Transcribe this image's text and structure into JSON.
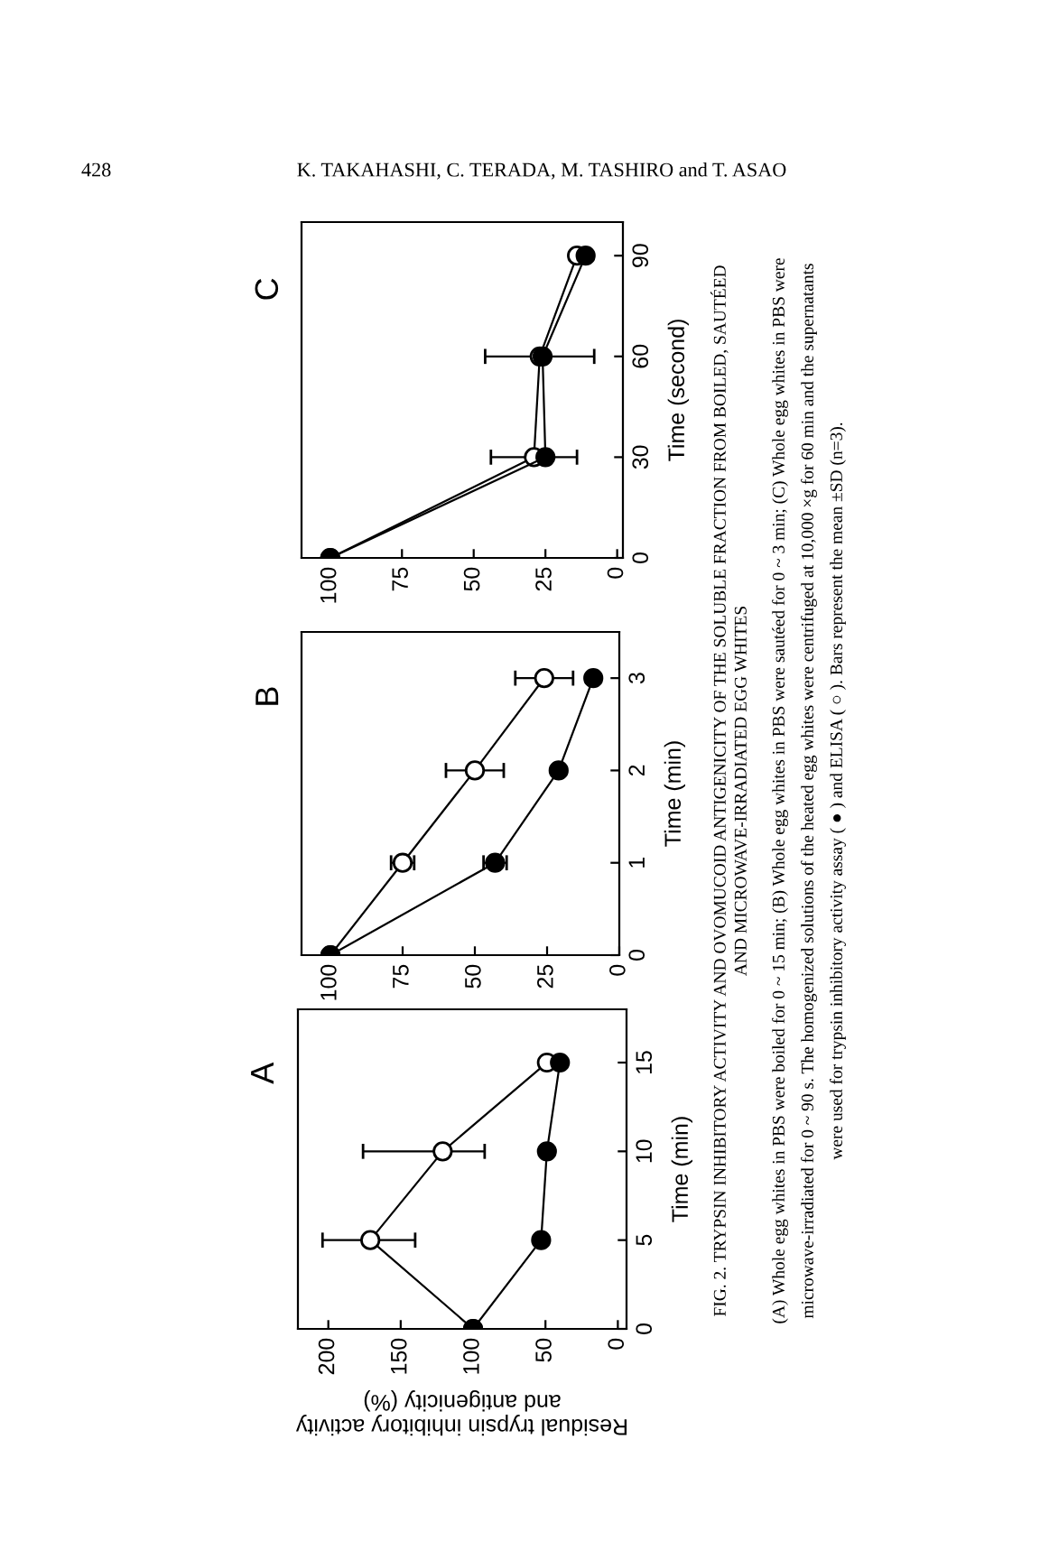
{
  "chart_data": [
    {
      "type": "line",
      "title": "A",
      "ylabel": "Time (min)",
      "xlabel": "Residual trypsin inhibitory activity\nand antigenicity (%)",
      "ylim": [
        0,
        18
      ],
      "yticks": [
        0,
        5,
        10,
        15
      ],
      "xlim": [
        221,
        -6
      ],
      "xticks": [
        0,
        50,
        100,
        150,
        200
      ],
      "marker": "circle",
      "line_style": "solid",
      "series": [
        {
          "color": "#000000",
          "x": [
            100,
            53,
            49,
            40
          ],
          "values": [
            0,
            5,
            10,
            15
          ]
        },
        {
          "color": "#ffffff",
          "x": [
            100,
            171,
            121,
            49
          ],
          "values": [
            0,
            5,
            10,
            15
          ],
          "xerrors": [
            null,
            [
              140,
              204
            ],
            [
              92,
              176
            ],
            null
          ]
        }
      ],
      "annotations": [
        "428",
        "K. TAKAHASHI, C. TERADA, M. TASHIRO and T. ASAO",
        "FIG. 2. TRYPSIN INHIBITORY ACTIVITY AND OVOMUCOID ANTIGENICITY OF THE SOLUBLE FRACTION FROM BOILED, SAUTÉED",
        "AND MICROWAVE-IRRADIATED EGG WHITES",
        "(A) Whole egg whites in PBS were boiled for 0 ~ 15 min; (B) Whole egg whites in PBS were sautéed for 0 ~ 3 min; (C) Whole egg whites in PBS were",
        "microwave-irradiated for 0 ~ 90 s. The homogenized solutions of the heated egg whites were centrifuged at 10,000 ×g for 60 min and the supernatants",
        "were used for trypsin inhibitory activity assay ( ● ) and ELISA ( ○ ). Bars represent the mean ±SD (n=3)."
      ]
    },
    {
      "type": "line",
      "title": "B",
      "ylabel": "Time (min)",
      "ylim": [
        0,
        3.5
      ],
      "yticks": [
        0,
        1,
        2,
        3
      ],
      "xlim": [
        110,
        0
      ],
      "xticks": [
        0,
        25,
        50,
        75,
        100
      ],
      "marker": "circle",
      "line_style": "solid",
      "series": [
        {
          "color": "#000000",
          "x": [
            100,
            43,
            21,
            9
          ],
          "values": [
            0,
            1,
            2,
            3
          ],
          "xerrors": [
            null,
            4,
            null,
            null
          ]
        },
        {
          "color": "#ffffff",
          "x": [
            100,
            75,
            50,
            26
          ],
          "values": [
            0,
            1,
            2,
            3
          ],
          "xerrors": [
            null,
            4,
            10,
            10
          ]
        }
      ]
    },
    {
      "type": "line",
      "title": "C",
      "ylabel": "Time (second)",
      "ylim": [
        0,
        100
      ],
      "yticks": [
        0,
        30,
        60,
        90
      ],
      "xlim": [
        110,
        -2
      ],
      "xticks": [
        0,
        25,
        50,
        75,
        100
      ],
      "marker": "circle",
      "line_style": "solid",
      "series": [
        {
          "color": "#000000",
          "x": [
            100,
            25,
            26,
            11
          ],
          "values": [
            0,
            30,
            60,
            90
          ]
        },
        {
          "color": "#ffffff",
          "x": [
            100,
            29,
            27,
            14
          ],
          "values": [
            0,
            30,
            60,
            90
          ],
          "xerrors": [
            null,
            15,
            19,
            null
          ]
        }
      ]
    }
  ]
}
